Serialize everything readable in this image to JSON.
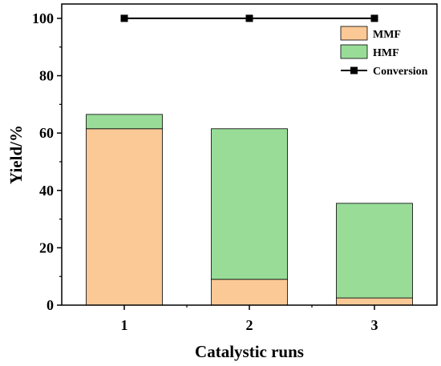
{
  "chart_data": {
    "type": "bar",
    "stacked": true,
    "categories": [
      "1",
      "2",
      "3"
    ],
    "series": [
      {
        "name": "MMF",
        "values": [
          61.5,
          9.0,
          2.5
        ],
        "color": "#fbc996"
      },
      {
        "name": "HMF",
        "values": [
          5.0,
          52.5,
          33.0
        ],
        "color": "#98dc98"
      }
    ],
    "line_series": {
      "name": "Conversion",
      "values": [
        100,
        100,
        100
      ],
      "color": "#000000"
    },
    "xlabel": "Catalystic runs",
    "ylabel": "Yield/%",
    "ylim": [
      0,
      105
    ],
    "yticks": [
      "0",
      "20",
      "40",
      "60",
      "80",
      "100"
    ],
    "legend": {
      "position": "top-right"
    },
    "grid": false
  }
}
